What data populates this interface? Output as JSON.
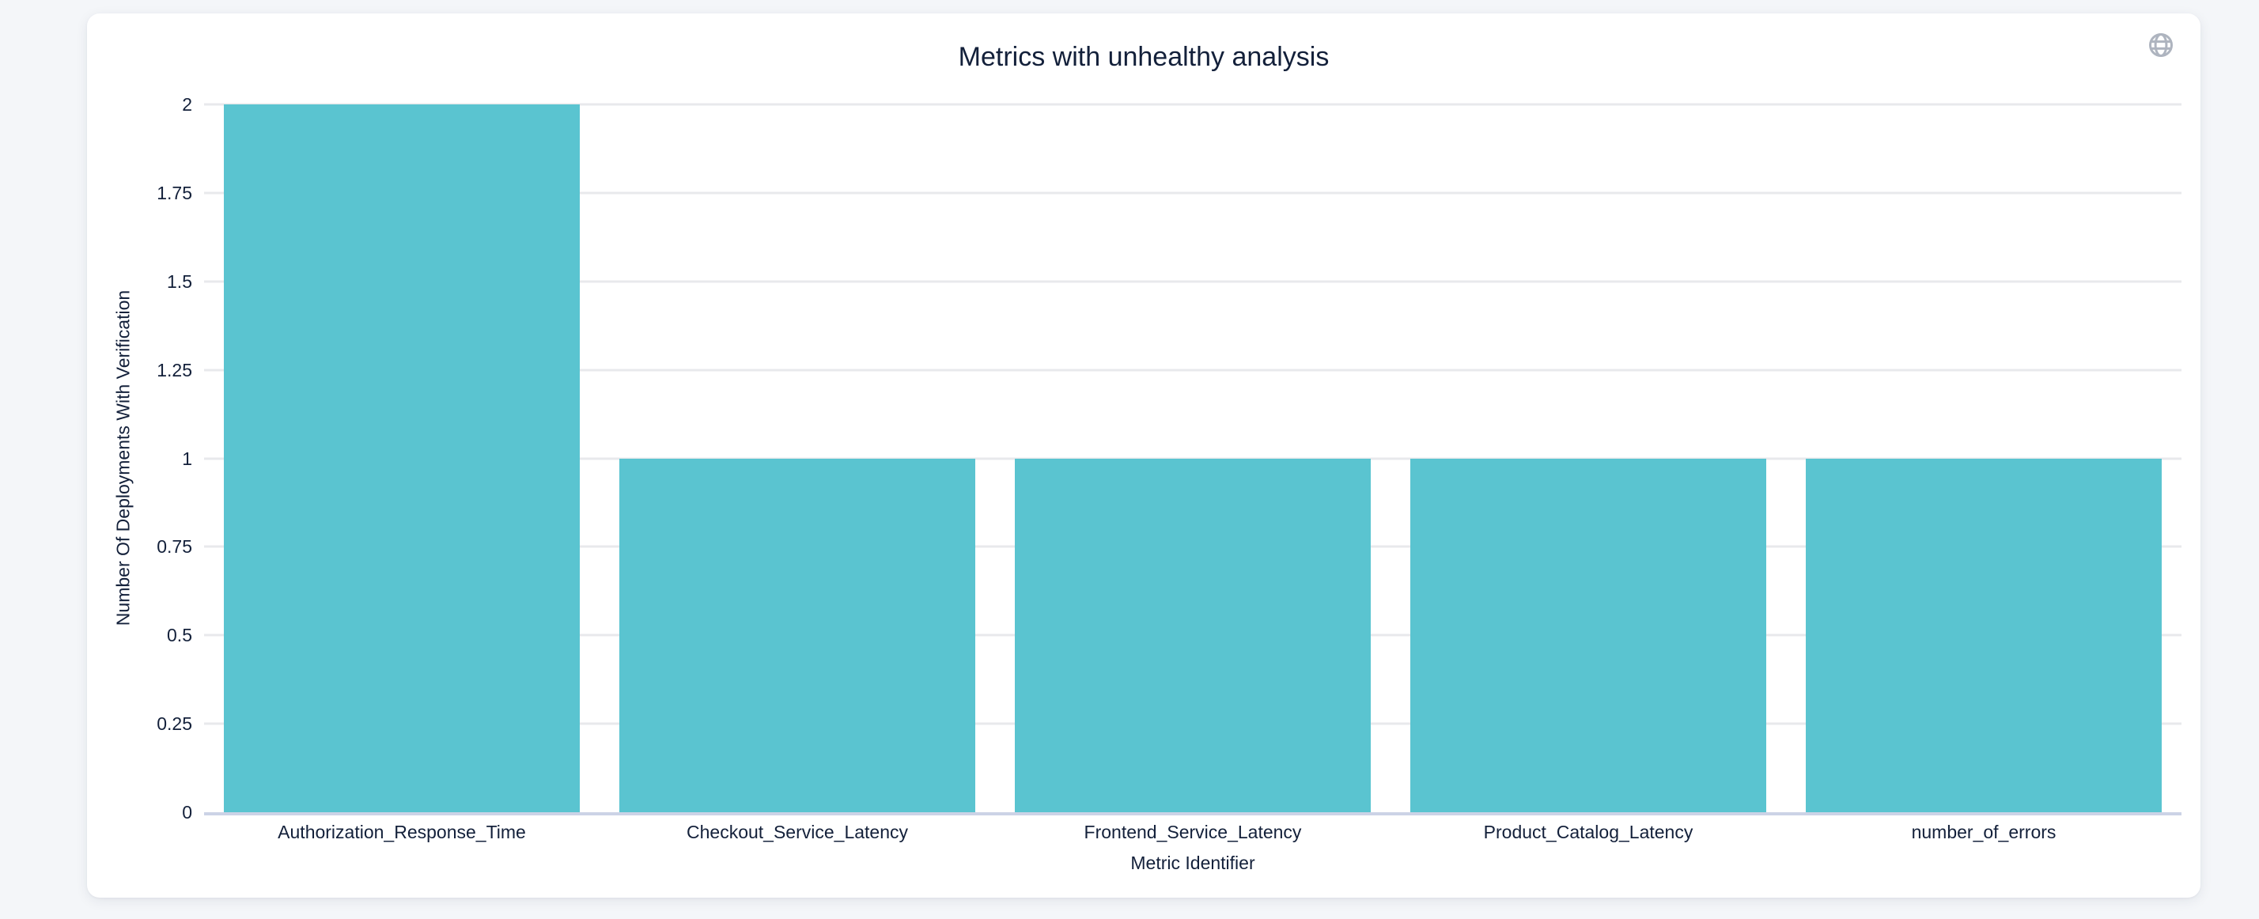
{
  "card": {
    "title": "Metrics with unhealthy analysis"
  },
  "icons": {
    "top_right": "globe-icon"
  },
  "colors": {
    "page_bg": "#f4f6f9",
    "card_bg": "#ffffff",
    "bar": "#5ac4d0",
    "text": "#13203a",
    "gridline": "#e8e9ec",
    "axis_line": "#ccd3e6",
    "globe_icon": "#aeb4bf"
  },
  "chart_data": {
    "type": "bar",
    "title": "Metrics with unhealthy analysis",
    "xlabel": "Metric Identifier",
    "ylabel": "Number Of Deployments With Verification",
    "categories": [
      "Authorization_Response_Time",
      "Checkout_Service_Latency",
      "Frontend_Service_Latency",
      "Product_Catalog_Latency",
      "number_of_errors"
    ],
    "values": [
      2,
      1,
      1,
      1,
      1
    ],
    "ylim": [
      0,
      2
    ],
    "yticks": [
      0,
      0.25,
      0.5,
      0.75,
      1,
      1.25,
      1.5,
      1.75,
      2
    ],
    "grid": true,
    "legend": "none",
    "bar_color": "#5ac4d0"
  }
}
